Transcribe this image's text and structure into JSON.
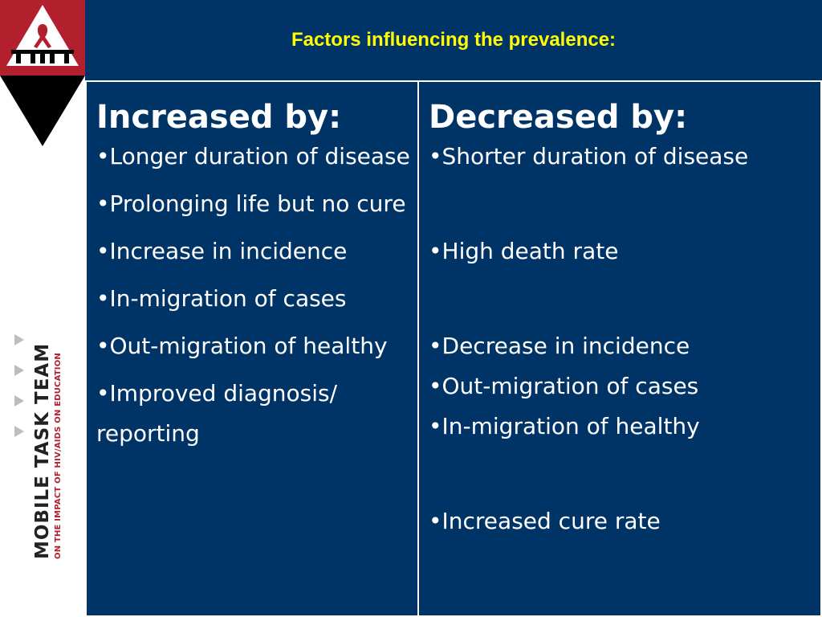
{
  "slide": {
    "title": "Factors influencing the prevalence:"
  },
  "brand": {
    "name": "MOBILE TASK TEAM",
    "tagline": "ON THE IMPACT OF HIV/AIDS ON EDUCATION",
    "logo_icon": "mtt-red-ribbon-logo",
    "colors": {
      "red": "#b21f2d",
      "black": "#000000"
    }
  },
  "colors": {
    "background": "#003366",
    "title": "#ffff00",
    "text": "#ffffff"
  },
  "table": {
    "increased": {
      "heading": "Increased by:",
      "items": [
        "Longer duration of disease",
        "Prolonging life but no cure",
        "Increase in incidence",
        "In-migration of cases",
        "Out-migration of healthy",
        "Improved diagnosis/ reporting"
      ]
    },
    "decreased": {
      "heading": "Decreased by:",
      "items": [
        "Shorter duration of disease",
        "High death rate",
        "Decrease in incidence",
        "Out-migration of cases",
        "In-migration of healthy",
        "Increased cure rate"
      ]
    }
  }
}
